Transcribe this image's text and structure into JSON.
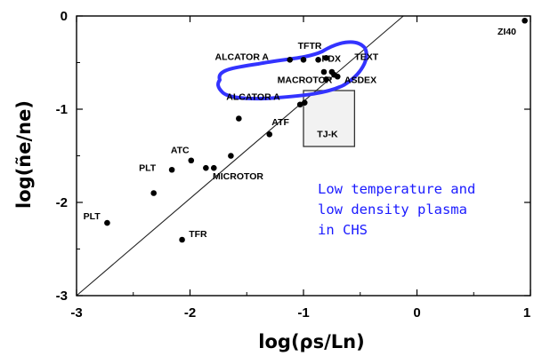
{
  "chart_data": {
    "type": "scatter",
    "title": "",
    "xlabel": "log(ρs/Ln)",
    "ylabel": "log(ñe/ne)",
    "xlim": [
      -3,
      1
    ],
    "ylim": [
      -3,
      0
    ],
    "xticks": [
      "-3",
      "-2",
      "-1",
      "0",
      "1"
    ],
    "yticks": [
      "0",
      "-1",
      "-2",
      "-3"
    ],
    "grid": false,
    "points": [
      {
        "x": -2.73,
        "y": -2.22
      },
      {
        "x": -2.32,
        "y": -1.9
      },
      {
        "x": -2.07,
        "y": -2.4
      },
      {
        "x": -2.16,
        "y": -1.65
      },
      {
        "x": -1.99,
        "y": -1.55
      },
      {
        "x": -1.86,
        "y": -1.63
      },
      {
        "x": -1.79,
        "y": -1.63
      },
      {
        "x": -1.64,
        "y": -1.5
      },
      {
        "x": -1.57,
        "y": -1.1
      },
      {
        "x": -1.3,
        "y": -1.27
      },
      {
        "x": -1.12,
        "y": -0.47
      },
      {
        "x": -1.0,
        "y": -0.47
      },
      {
        "x": -1.03,
        "y": -0.95
      },
      {
        "x": -0.99,
        "y": -0.93
      },
      {
        "x": -0.87,
        "y": -0.47
      },
      {
        "x": -0.8,
        "y": -0.45
      },
      {
        "x": -0.82,
        "y": -0.6
      },
      {
        "x": -0.75,
        "y": -0.6
      },
      {
        "x": -0.7,
        "y": -0.65
      },
      {
        "x": -0.8,
        "y": -0.68
      },
      {
        "x": -0.73,
        "y": -0.63
      },
      {
        "x": 0.95,
        "y": -0.05
      }
    ],
    "annotations": [
      {
        "text": "PLT",
        "x": -2.94,
        "y": -2.18
      },
      {
        "text": "PLT",
        "x": -2.45,
        "y": -1.66
      },
      {
        "text": "TFR",
        "x": -2.01,
        "y": -2.37
      },
      {
        "text": "ATC",
        "x": -2.17,
        "y": -1.47
      },
      {
        "text": "MICROTOR",
        "x": -1.8,
        "y": -1.75
      },
      {
        "text": "ATF",
        "x": -1.28,
        "y": -1.17
      },
      {
        "text": "ALCATOR A",
        "x": -1.68,
        "y": -0.9
      },
      {
        "text": "ALCATOR A",
        "x": -1.78,
        "y": -0.47
      },
      {
        "text": "TFTR",
        "x": -1.05,
        "y": -0.35
      },
      {
        "text": "PDX",
        "x": -0.84,
        "y": -0.49
      },
      {
        "text": "TEXT",
        "x": -0.55,
        "y": -0.47
      },
      {
        "text": "MACROTOR",
        "x": -1.23,
        "y": -0.72
      },
      {
        "text": "ASDEX",
        "x": -0.64,
        "y": -0.72
      },
      {
        "text": "TJ-K",
        "x": -0.88,
        "y": -1.3
      },
      {
        "text": "ZI40",
        "x": 0.71,
        "y": -0.2
      }
    ],
    "scaling_line": {
      "from": [
        -3,
        -3
      ],
      "to": [
        -0.12,
        0
      ]
    },
    "tjk_region": {
      "x": [
        -1,
        -0.55
      ],
      "y": [
        -1.4,
        -0.8
      ]
    },
    "note_lines": [
      "Low temperature and",
      "low density plasma",
      "in CHS"
    ],
    "colors": {
      "note": "#1a1aff",
      "highlight_outline": "#3333ff",
      "region_fill": "#f2f2f2"
    }
  }
}
